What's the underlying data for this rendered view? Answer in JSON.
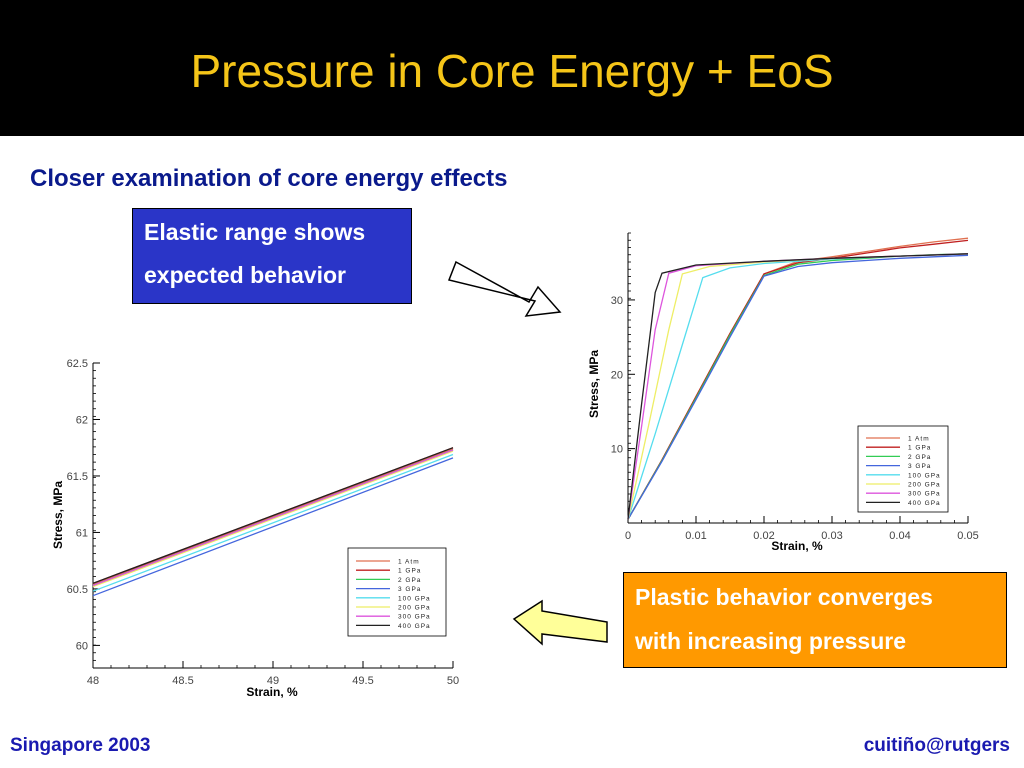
{
  "slide": {
    "title": "Pressure in Core Energy + EoS",
    "subtitle": "Closer examination of core energy effects",
    "callout_elastic": [
      "Elastic range shows",
      "expected behavior"
    ],
    "callout_plastic": [
      "Plastic behavior converges",
      "with increasing pressure"
    ],
    "footer_left": "Singapore 2003",
    "footer_right": "cuitiño@rutgers"
  },
  "colors": {
    "header_bg": "#000000",
    "title": "#f5c518",
    "subtitle": "#0a1a8c",
    "elastic_box": "#2a35c8",
    "plastic_box": "#ff9900",
    "footer": "#1a1ab0"
  },
  "icons": [
    "right-arrow-icon",
    "left-arrow-icon"
  ],
  "chart_data": [
    {
      "type": "line",
      "xlabel": "Strain, %",
      "ylabel": "Stress, MPa",
      "xlim": [
        48,
        50
      ],
      "ylim": [
        59.8,
        62.5
      ],
      "xticks": [
        "48",
        "48.5",
        "49",
        "49.5",
        "50"
      ],
      "yticks": [
        "60",
        "60.5",
        "61",
        "61.5",
        "62",
        "62.5"
      ],
      "legend_position": "bottom-right",
      "series": [
        {
          "name": "1 Atm",
          "color": "#e07050",
          "x": [
            48,
            50
          ],
          "y": [
            60.54,
            61.74
          ]
        },
        {
          "name": "1 GPa",
          "color": "#c02020",
          "x": [
            48,
            50
          ],
          "y": [
            60.55,
            61.75
          ]
        },
        {
          "name": "2 GPa",
          "color": "#33cc55",
          "x": [
            48,
            50
          ],
          "y": [
            60.53,
            61.73
          ]
        },
        {
          "name": "3 GPa",
          "color": "#4466dd",
          "x": [
            48,
            50
          ],
          "y": [
            60.44,
            61.66
          ]
        },
        {
          "name": "100 GPa",
          "color": "#55ddee",
          "x": [
            48,
            50
          ],
          "y": [
            60.48,
            61.69
          ]
        },
        {
          "name": "200 GPa",
          "color": "#eeee66",
          "x": [
            48,
            50
          ],
          "y": [
            60.52,
            61.72
          ]
        },
        {
          "name": "300 GPa",
          "color": "#dd55dd",
          "x": [
            48,
            50
          ],
          "y": [
            60.53,
            61.73
          ]
        },
        {
          "name": "400 GPa",
          "color": "#222222",
          "x": [
            48,
            50
          ],
          "y": [
            60.55,
            61.75
          ]
        }
      ]
    },
    {
      "type": "line",
      "xlabel": "Strain, %",
      "ylabel": "Stress, MPa",
      "xlim": [
        0,
        0.05
      ],
      "ylim": [
        0,
        39
      ],
      "xticks": [
        "0",
        "0.01",
        "0.02",
        "0.03",
        "0.04",
        "0.05"
      ],
      "yticks": [
        "10",
        "20",
        "30"
      ],
      "legend_position": "bottom-right",
      "series": [
        {
          "name": "1 Atm",
          "color": "#e07050",
          "x": [
            0,
            0.005,
            0.01,
            0.015,
            0.02,
            0.025,
            0.03,
            0.035,
            0.04,
            0.045,
            0.05
          ],
          "y": [
            0.5,
            8.5,
            17,
            25.5,
            33.5,
            35.2,
            35.8,
            36.5,
            37.2,
            37.8,
            38.3
          ]
        },
        {
          "name": "1 GPa",
          "color": "#c02020",
          "x": [
            0,
            0.005,
            0.01,
            0.015,
            0.02,
            0.025,
            0.03,
            0.035,
            0.04,
            0.045,
            0.05
          ],
          "y": [
            0.5,
            8.5,
            17,
            25.5,
            33.5,
            35,
            35.6,
            36.3,
            37,
            37.5,
            38
          ]
        },
        {
          "name": "2 GPa",
          "color": "#33cc55",
          "x": [
            0,
            0.005,
            0.01,
            0.015,
            0.02,
            0.025,
            0.03,
            0.035,
            0.04,
            0.045,
            0.05
          ],
          "y": [
            0.5,
            8.4,
            16.8,
            25.3,
            33.3,
            34.8,
            35.3,
            35.6,
            35.9,
            36.1,
            36.2
          ]
        },
        {
          "name": "3 GPa",
          "color": "#4466dd",
          "x": [
            0,
            0.005,
            0.01,
            0.015,
            0.02,
            0.025,
            0.03,
            0.035,
            0.04,
            0.045,
            0.05
          ],
          "y": [
            0.5,
            8.3,
            16.6,
            25,
            33.2,
            34.5,
            35,
            35.3,
            35.6,
            35.8,
            36
          ]
        },
        {
          "name": "100 GPa",
          "color": "#55ddee",
          "x": [
            0,
            0.004,
            0.008,
            0.011,
            0.015,
            0.02,
            0.03,
            0.04,
            0.05
          ],
          "y": [
            0.5,
            12,
            24,
            33,
            34.3,
            34.9,
            35.5,
            35.9,
            36.2
          ]
        },
        {
          "name": "200 GPa",
          "color": "#eeee66",
          "x": [
            0,
            0.003,
            0.006,
            0.008,
            0.012,
            0.02,
            0.03,
            0.04,
            0.05
          ],
          "y": [
            0.5,
            13,
            26,
            33.5,
            34.5,
            35.1,
            35.6,
            35.9,
            36.2
          ]
        },
        {
          "name": "300 GPa",
          "color": "#dd55dd",
          "x": [
            0,
            0.002,
            0.004,
            0.006,
            0.01,
            0.02,
            0.03,
            0.04,
            0.05
          ],
          "y": [
            0.5,
            13,
            26,
            33.6,
            34.6,
            35.2,
            35.6,
            35.9,
            36.2
          ]
        },
        {
          "name": "400 GPa",
          "color": "#222222",
          "x": [
            0,
            0.002,
            0.004,
            0.005,
            0.01,
            0.02,
            0.03,
            0.04,
            0.05
          ],
          "y": [
            0.5,
            16,
            31,
            33.6,
            34.7,
            35.2,
            35.6,
            35.9,
            36.2
          ]
        }
      ]
    }
  ]
}
